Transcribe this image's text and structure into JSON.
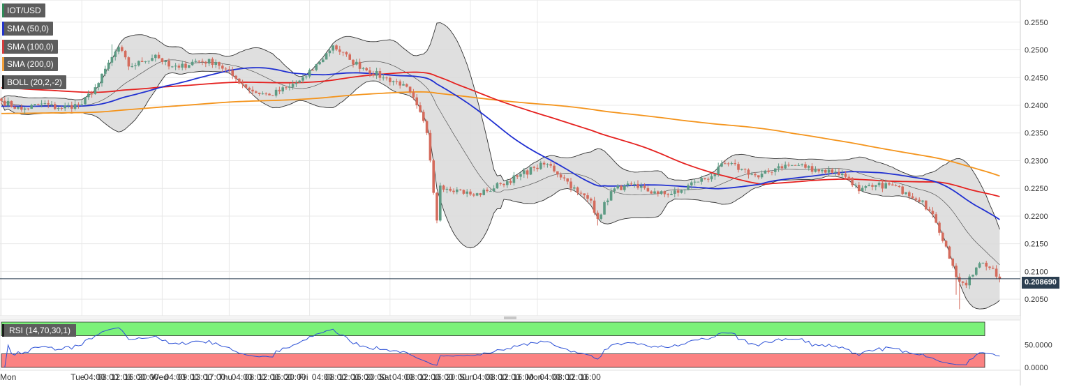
{
  "legend": [
    {
      "label": "IOT/USD",
      "color": "#2e8b57"
    },
    {
      "label": "SMA (50,0)",
      "color": "#2233cc"
    },
    {
      "label": "SMA (100,0)",
      "color": "#d63a3a"
    },
    {
      "label": "SMA (200,0)",
      "color": "#f4a03a"
    },
    {
      "label": "BOLL (20,2,-2)",
      "color": "#1b1b1b"
    }
  ],
  "rsi_label": "RSI (14,70,30,1)",
  "last_price_label": "0.208690",
  "chart_data": {
    "type": "candlestick",
    "symbol": "IOT/USD",
    "interval_hours": 1,
    "start_time": "Mon 00:00",
    "ylim": [
      0.202,
      0.259
    ],
    "y_ticks": [
      "0.2550",
      "0.2500",
      "0.2450",
      "0.2400",
      "0.2350",
      "0.2300",
      "0.2250",
      "0.2200",
      "0.2150",
      "0.2100",
      "0.2050"
    ],
    "x_ticks": [
      "Mon",
      "Tue",
      "04:00",
      "08:00",
      "12:00",
      "16:00",
      "20:00",
      "Wed",
      "04:00",
      "09:00",
      "13:00",
      "17:00",
      "Thu",
      "04:00",
      "08:00",
      "12:00",
      "16:00",
      "20:00",
      "Fri",
      "04:00",
      "08:00",
      "12:00",
      "16:00",
      "20:00",
      "Sat",
      "04:00",
      "08:00",
      "12:00",
      "16:00",
      "20:00",
      "Sun",
      "04:00",
      "08:00",
      "12:00",
      "16:00",
      "Mon",
      "04:00",
      "08:00",
      "12:00",
      "16:00"
    ],
    "last_price": 0.20869,
    "close_anchors_by_hour": [
      [
        0,
        0.2408
      ],
      [
        6,
        0.2392
      ],
      [
        12,
        0.2403
      ],
      [
        17,
        0.2395
      ],
      [
        24,
        0.2402
      ],
      [
        29,
        0.244
      ],
      [
        33,
        0.2487
      ],
      [
        35,
        0.2505
      ],
      [
        38,
        0.247
      ],
      [
        42,
        0.2478
      ],
      [
        46,
        0.2491
      ],
      [
        50,
        0.247
      ],
      [
        53,
        0.2468
      ],
      [
        58,
        0.248
      ],
      [
        64,
        0.2478
      ],
      [
        70,
        0.2448
      ],
      [
        75,
        0.2425
      ],
      [
        80,
        0.2418
      ],
      [
        86,
        0.2433
      ],
      [
        91,
        0.2452
      ],
      [
        95,
        0.2478
      ],
      [
        99,
        0.2508
      ],
      [
        104,
        0.2482
      ],
      [
        108,
        0.2467
      ],
      [
        114,
        0.245
      ],
      [
        120,
        0.2438
      ],
      [
        124,
        0.24
      ],
      [
        127,
        0.235
      ],
      [
        130,
        0.2192
      ],
      [
        131,
        0.2255
      ],
      [
        136,
        0.2248
      ],
      [
        141,
        0.2237
      ],
      [
        145,
        0.2245
      ],
      [
        149,
        0.2258
      ],
      [
        154,
        0.2271
      ],
      [
        159,
        0.2287
      ],
      [
        163,
        0.2294
      ],
      [
        168,
        0.2268
      ],
      [
        172,
        0.2242
      ],
      [
        176,
        0.2228
      ],
      [
        178,
        0.2195
      ],
      [
        182,
        0.2245
      ],
      [
        186,
        0.2255
      ],
      [
        190,
        0.2251
      ],
      [
        196,
        0.224
      ],
      [
        202,
        0.2242
      ],
      [
        207,
        0.2262
      ],
      [
        212,
        0.2272
      ],
      [
        216,
        0.2295
      ],
      [
        221,
        0.2285
      ],
      [
        226,
        0.227
      ],
      [
        232,
        0.229
      ],
      [
        238,
        0.2292
      ],
      [
        243,
        0.2284
      ],
      [
        249,
        0.228
      ],
      [
        253,
        0.2269
      ],
      [
        256,
        0.2245
      ],
      [
        260,
        0.2253
      ],
      [
        265,
        0.2257
      ],
      [
        270,
        0.2243
      ],
      [
        275,
        0.2228
      ],
      [
        279,
        0.2188
      ],
      [
        282,
        0.2145
      ],
      [
        285,
        0.209
      ],
      [
        288,
        0.2075
      ],
      [
        292,
        0.2115
      ],
      [
        296,
        0.2105
      ],
      [
        298,
        0.2087
      ]
    ],
    "rsi_zones": {
      "overbought": 70,
      "oversold": 30
    },
    "rsi_ticks": [
      "50.0000",
      "0.0000"
    ]
  }
}
